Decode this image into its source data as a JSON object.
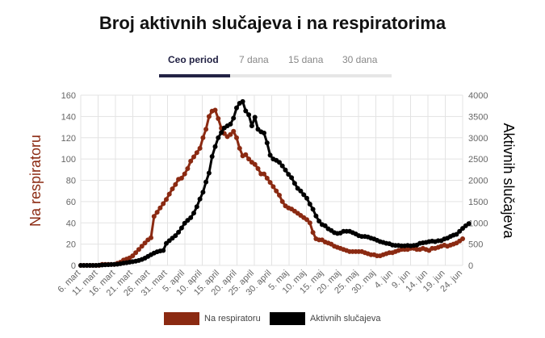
{
  "title": "Broj aktivnih slučajeva i na respiratorima",
  "tabs": [
    {
      "label": "Ceo period",
      "active": true
    },
    {
      "label": "7 dana",
      "active": false
    },
    {
      "label": "15 dana",
      "active": false
    },
    {
      "label": "30 dana",
      "active": false
    }
  ],
  "colors": {
    "respirator": "#8b2a12",
    "active": "#000000"
  },
  "chart_data": {
    "type": "line",
    "ylabel_left": "Na respiratoru",
    "ylabel_right": "Aktivnih slučajeva",
    "ylim_left": [
      0,
      160
    ],
    "ylim_right": [
      0,
      4000
    ],
    "yticks_left": [
      0,
      20,
      40,
      60,
      80,
      100,
      120,
      140,
      160
    ],
    "yticks_right": [
      0,
      500,
      1000,
      1500,
      2000,
      2500,
      3000,
      3500,
      4000
    ],
    "x_tick_labels": [
      "6. mart",
      "11. mart",
      "16. mart",
      "21. mart",
      "26. mart",
      "31. mart",
      "5. april",
      "10. april",
      "15. april",
      "20. april",
      "25. april",
      "30. april",
      "5. maj",
      "10. maj",
      "15. maj",
      "20. maj",
      "25. maj",
      "30. maj",
      "4. jun",
      "9. jun",
      "14. jun",
      "19. jun",
      "24. jun"
    ],
    "grid": true,
    "legend_position": "bottom",
    "series": [
      {
        "name": "Na respiratoru",
        "axis": "left",
        "values": [
          0,
          0,
          0,
          0,
          0,
          0,
          0,
          1,
          1,
          1,
          1,
          1,
          2,
          3,
          5,
          6,
          7,
          9,
          12,
          15,
          18,
          21,
          24,
          26,
          46,
          50,
          54,
          58,
          62,
          67,
          72,
          76,
          81,
          82,
          86,
          91,
          98,
          102,
          106,
          110,
          120,
          128,
          140,
          145,
          146,
          138,
          129,
          124,
          121,
          123,
          126,
          120,
          110,
          103,
          104,
          100,
          97,
          95,
          91,
          86,
          86,
          82,
          78,
          74,
          70,
          66,
          60,
          56,
          54,
          53,
          51,
          49,
          47,
          45,
          43,
          40,
          31,
          25,
          24,
          24,
          22,
          21,
          20,
          18,
          17,
          16,
          15,
          14,
          13,
          13,
          13,
          13,
          13,
          12,
          11,
          10,
          10,
          9,
          9,
          10,
          11,
          12,
          12,
          13,
          14,
          15,
          15,
          15,
          16,
          16,
          15,
          15,
          16,
          15,
          14,
          16,
          16,
          17,
          18,
          19,
          18,
          19,
          20,
          21,
          23,
          25
        ]
      },
      {
        "name": "Aktivnih slučajeva",
        "axis": "right",
        "values": [
          0,
          0,
          0,
          0,
          0,
          0,
          5,
          10,
          15,
          18,
          20,
          22,
          28,
          40,
          55,
          65,
          75,
          88,
          100,
          115,
          140,
          170,
          210,
          250,
          290,
          320,
          340,
          350,
          520,
          580,
          640,
          700,
          780,
          880,
          990,
          1060,
          1120,
          1230,
          1380,
          1560,
          1720,
          1960,
          2170,
          2560,
          2790,
          3000,
          3120,
          3230,
          3280,
          3320,
          3460,
          3700,
          3810,
          3850,
          3630,
          3540,
          3280,
          3480,
          3200,
          3140,
          3110,
          2880,
          2590,
          2500,
          2470,
          2420,
          2340,
          2240,
          2140,
          2060,
          1930,
          1810,
          1750,
          1660,
          1580,
          1440,
          1320,
          1160,
          1040,
          960,
          930,
          860,
          820,
          770,
          750,
          760,
          800,
          800,
          800,
          770,
          740,
          700,
          680,
          680,
          670,
          640,
          620,
          590,
          560,
          540,
          520,
          510,
          480,
          470,
          470,
          460,
          460,
          470,
          460,
          470,
          480,
          520,
          530,
          540,
          560,
          570,
          560,
          580,
          580,
          620,
          640,
          680,
          710,
          730,
          800,
          870,
          930,
          980
        ]
      }
    ]
  },
  "legend": [
    {
      "label": "Na respiratoru"
    },
    {
      "label": "Aktivnih slučajeva"
    }
  ]
}
